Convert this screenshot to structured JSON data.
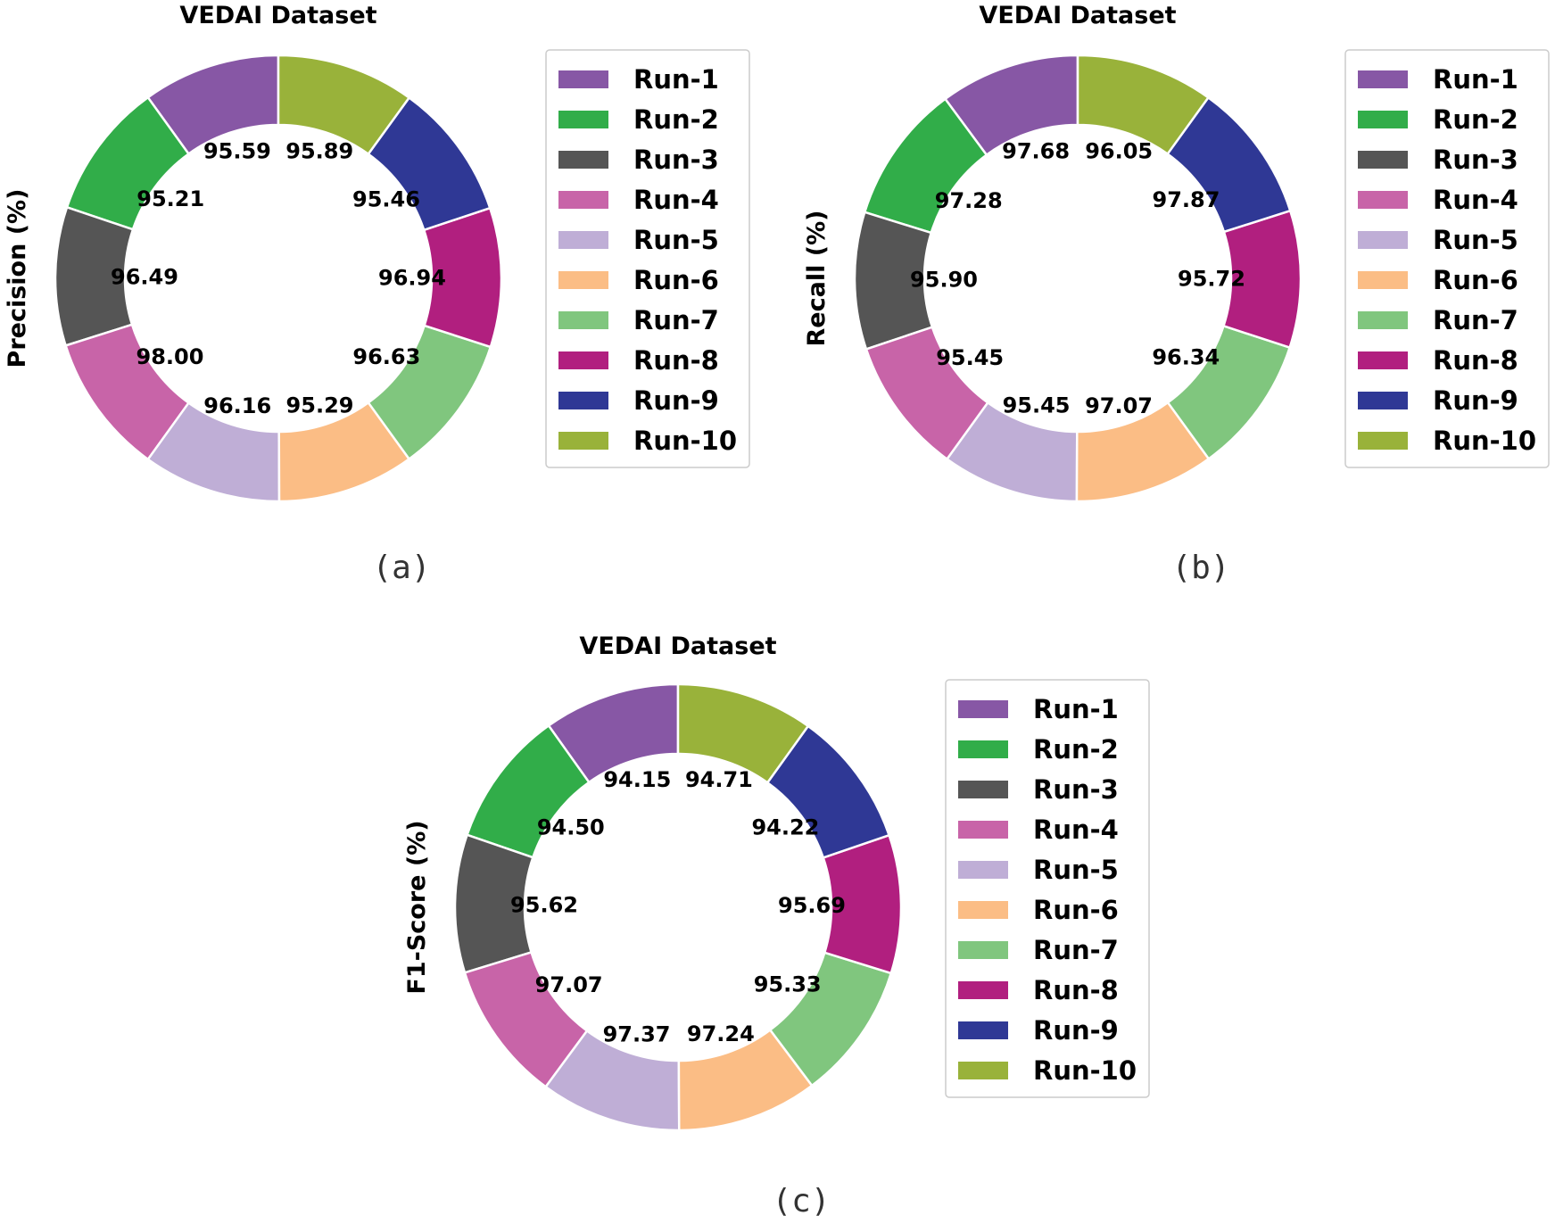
{
  "colors": [
    "#8757a5",
    "#31ad49",
    "#555555",
    "#c864a8",
    "#bfaed6",
    "#fbbd85",
    "#80c67e",
    "#b11f7f",
    "#2f3895",
    "#99b23a"
  ],
  "chart_data": [
    {
      "type": "pie",
      "variant": "donut",
      "title": "VEDAI Dataset",
      "ylabel": "Precision (%)",
      "caption": "(a)",
      "categories": [
        "Run-1",
        "Run-2",
        "Run-3",
        "Run-4",
        "Run-5",
        "Run-6",
        "Run-7",
        "Run-8",
        "Run-9",
        "Run-10"
      ],
      "values": [
        95.59,
        95.21,
        96.49,
        98.0,
        96.16,
        95.29,
        96.63,
        96.94,
        95.46,
        95.89
      ],
      "value_labels": [
        "95.59",
        "95.21",
        "96.49",
        "98.00",
        "96.16",
        "95.29",
        "96.63",
        "96.94",
        "95.46",
        "95.89"
      ],
      "legend_position": "right"
    },
    {
      "type": "pie",
      "variant": "donut",
      "title": "VEDAI Dataset",
      "ylabel": "Recall (%)",
      "caption": "(b)",
      "categories": [
        "Run-1",
        "Run-2",
        "Run-3",
        "Run-4",
        "Run-5",
        "Run-6",
        "Run-7",
        "Run-8",
        "Run-9",
        "Run-10"
      ],
      "values": [
        97.68,
        97.28,
        95.9,
        95.45,
        95.45,
        97.07,
        96.34,
        95.72,
        97.87,
        96.05
      ],
      "value_labels": [
        "97.68",
        "97.28",
        "95.90",
        "95.45",
        "95.45",
        "97.07",
        "96.34",
        "95.72",
        "97.87",
        "96.05"
      ],
      "legend_position": "right"
    },
    {
      "type": "pie",
      "variant": "donut",
      "title": "VEDAI Dataset",
      "ylabel": "F1-Score (%)",
      "caption": "(c)",
      "categories": [
        "Run-1",
        "Run-2",
        "Run-3",
        "Run-4",
        "Run-5",
        "Run-6",
        "Run-7",
        "Run-8",
        "Run-9",
        "Run-10"
      ],
      "values": [
        94.15,
        94.5,
        95.62,
        97.07,
        97.37,
        97.24,
        95.33,
        95.69,
        94.22,
        94.71
      ],
      "value_labels": [
        "94.15",
        "94.50",
        "95.62",
        "97.07",
        "97.37",
        "97.24",
        "95.33",
        "95.69",
        "94.22",
        "94.71"
      ],
      "legend_position": "right"
    }
  ]
}
